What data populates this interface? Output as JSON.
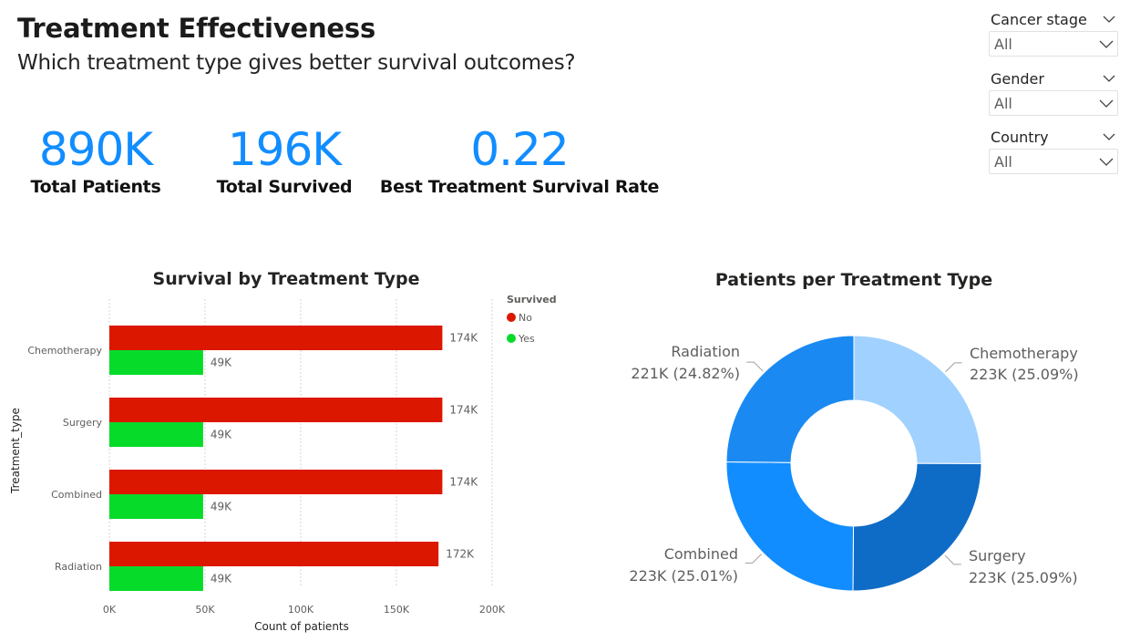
{
  "page": {
    "title": "Treatment Effectiveness",
    "subtitle": "Which treatment type gives better survival outcomes?"
  },
  "kpis": {
    "total_patients": {
      "value": "890K",
      "label": "Total Patients"
    },
    "total_survived": {
      "value": "196K",
      "label": "Total Survived"
    },
    "best_rate": {
      "value": "0.22",
      "label": "Best Treatment Survival Rate"
    }
  },
  "filters": {
    "cancer_stage": {
      "label": "Cancer stage",
      "value": "All"
    },
    "gender": {
      "label": "Gender",
      "value": "All"
    },
    "country": {
      "label": "Country",
      "value": "All"
    }
  },
  "chart_data": [
    {
      "type": "bar",
      "orientation": "horizontal",
      "title": "Survival by Treatment Type",
      "xlabel": "Count of patients",
      "ylabel": "Treatment_type",
      "categories": [
        "Chemotherapy",
        "Surgery",
        "Combined",
        "Radiation"
      ],
      "series": [
        {
          "name": "No",
          "color": "#DC1700",
          "values": [
            174000,
            174000,
            174000,
            172000
          ],
          "labels": [
            "174K",
            "174K",
            "174K",
            "172K"
          ]
        },
        {
          "name": "Yes",
          "color": "#07DB2A",
          "values": [
            49000,
            49000,
            49000,
            49000
          ],
          "labels": [
            "49K",
            "49K",
            "49K",
            "49K"
          ]
        }
      ],
      "xlim": [
        0,
        200000
      ],
      "xticks": [
        "0K",
        "50K",
        "100K",
        "150K",
        "200K"
      ],
      "legend": {
        "title": "Survived",
        "placement": "top-right"
      },
      "grid": true
    },
    {
      "type": "pie",
      "variant": "donut",
      "title": "Patients per Treatment Type",
      "slices": [
        {
          "label": "Chemotherapy",
          "value": 223000,
          "value_label": "223K (25.09%)",
          "color": "#A0D1FF"
        },
        {
          "label": "Surgery",
          "value": 223000,
          "value_label": "223K (25.09%)",
          "color": "#0F6CC6"
        },
        {
          "label": "Combined",
          "value": 223000,
          "value_label": "223K (25.01%)",
          "color": "#118DFF"
        },
        {
          "label": "Radiation",
          "value": 221000,
          "value_label": "221K (24.82%)",
          "color": "#1A8AF2"
        }
      ],
      "percentages": [
        25.09,
        25.09,
        25.01,
        24.82
      ]
    }
  ]
}
